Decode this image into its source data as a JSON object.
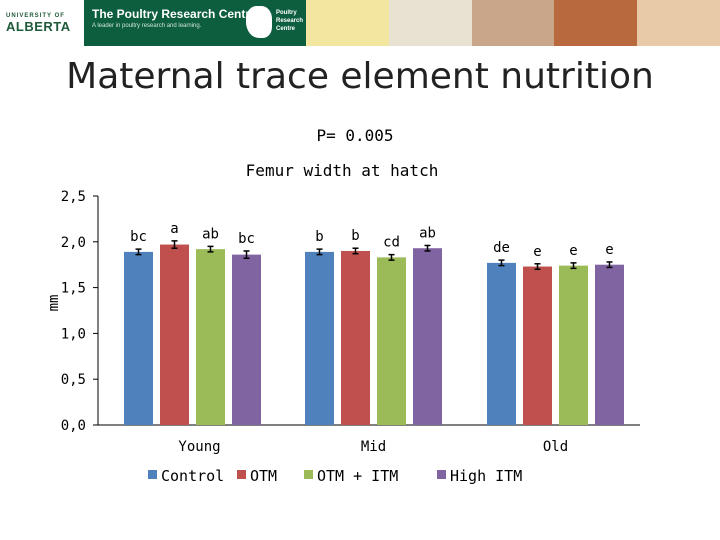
{
  "slide_title": "Maternal trace element nutrition",
  "banner": {
    "logo_small": "UNIVERSITY OF",
    "logo_big": "ALBERTA",
    "centre_name": "The Poultry Research Centre",
    "centre_tagline": "A leader in poultry research and learning.",
    "badge_text": [
      "Poultry",
      "Research",
      "Centre"
    ],
    "photo_colors": [
      "#f2e6a0",
      "#e9e2d3",
      "#c9a58a",
      "#b8693e",
      "#e8c9a8"
    ]
  },
  "chart_data": {
    "type": "bar",
    "subtitle": "P= 0.005",
    "title": "Femur width at hatch",
    "ylabel": "mm",
    "xlabel": "",
    "ylim": [
      0.0,
      2.5
    ],
    "yticks": [
      "0,0",
      "0,5",
      "1,0",
      "1,5",
      "2,0",
      "2,5"
    ],
    "categories": [
      "Young",
      "Mid",
      "Old"
    ],
    "series": [
      {
        "name": "Control",
        "color": "#4f81bd",
        "values": [
          1.89,
          1.89,
          1.77
        ],
        "errors": [
          0.03,
          0.03,
          0.03
        ],
        "letters": [
          "bc",
          "b",
          "de"
        ]
      },
      {
        "name": "OTM",
        "color": "#c0504d",
        "values": [
          1.97,
          1.9,
          1.73
        ],
        "errors": [
          0.04,
          0.03,
          0.03
        ],
        "letters": [
          "a",
          "b",
          "e"
        ]
      },
      {
        "name": "OTM + ITM",
        "color": "#9bbb59",
        "values": [
          1.92,
          1.83,
          1.74
        ],
        "errors": [
          0.03,
          0.03,
          0.03
        ],
        "letters": [
          "ab",
          "cd",
          "e"
        ]
      },
      {
        "name": "High ITM",
        "color": "#8064a2",
        "values": [
          1.86,
          1.93,
          1.75
        ],
        "errors": [
          0.04,
          0.03,
          0.03
        ],
        "letters": [
          "bc",
          "ab",
          "e"
        ]
      }
    ],
    "grid": false,
    "legend_position": "bottom"
  }
}
